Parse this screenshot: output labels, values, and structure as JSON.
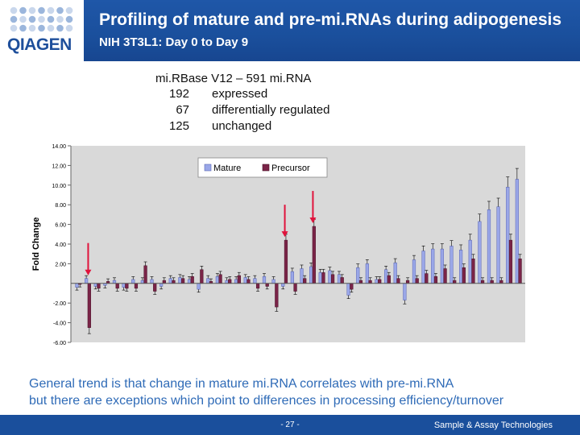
{
  "header": {
    "logo_text": "QIAGEN",
    "title": "Profiling of mature and pre-mi.RNAs during adipogenesis",
    "subtitle": "NIH 3T3L1: Day 0 to Day 9"
  },
  "stats": {
    "heading": "mi.RBase V12 – 591 mi.RNA",
    "rows": [
      {
        "value": "192",
        "label": "expressed"
      },
      {
        "value": "67",
        "label": "differentially regulated"
      },
      {
        "value": "125",
        "label": "unchanged"
      }
    ]
  },
  "caption": {
    "line1": "General trend is that change in mature mi.RNA correlates with pre-mi.RNA",
    "line2": "but there are exceptions which point to differences in processing efficiency/turnover"
  },
  "footer": {
    "page": "- 27 -",
    "tagline": "Sample & Assay Technologies"
  },
  "colors": {
    "brand_blue": "#1a4f9c",
    "mature": "#9aa7e8",
    "precursor": "#7a2448",
    "plot_bg": "#d9d9d9",
    "arrow": "#e0133c"
  },
  "chart_data": {
    "type": "bar",
    "title": "",
    "xlabel": "",
    "ylabel": "Fold Change",
    "ylim": [
      -6,
      14
    ],
    "yticks": [
      "-6.00",
      "-4.00",
      "-2.00",
      "2.00",
      "4.00",
      "6.00",
      "8.00",
      "10.00",
      "12.00",
      "14.00"
    ],
    "legend_position": "top-center",
    "grid": false,
    "series": [
      {
        "name": "Mature",
        "values": [
          -0.4,
          0.5,
          -0.3,
          -0.2,
          0.3,
          -0.4,
          0.4,
          0.3,
          0.4,
          -0.3,
          0.5,
          0.6,
          0.4,
          -0.6,
          0.5,
          0.7,
          0.3,
          0.4,
          0.6,
          0.5,
          0.7,
          0.4,
          -0.3,
          1.2,
          1.5,
          1.7,
          1.1,
          1.3,
          0.9,
          -1.2,
          1.6,
          2.0,
          0.4,
          1.4,
          2.1,
          -1.7,
          2.4,
          3.3,
          3.5,
          3.5,
          3.8,
          3.4,
          4.4,
          6.3,
          7.5,
          7.8,
          9.8,
          10.6
        ]
      },
      {
        "name": "Precursor",
        "values": [
          -0.1,
          -4.5,
          -0.5,
          0.2,
          -0.5,
          -0.5,
          -0.5,
          1.8,
          -0.8,
          0.3,
          0.3,
          0.5,
          0.7,
          1.4,
          0.2,
          0.9,
          0.4,
          0.8,
          0.4,
          -0.5,
          -0.3,
          -2.4,
          4.4,
          -0.8,
          0.5,
          5.8,
          1.1,
          0.9,
          0.6,
          -0.6,
          0.3,
          0.3,
          0.4,
          0.8,
          0.5,
          0.3,
          0.5,
          1.0,
          0.7,
          1.5,
          0.3,
          1.6,
          2.5,
          0.3,
          0.3,
          0.3,
          4.4,
          2.5
        ]
      }
    ],
    "annotations": [
      {
        "type": "arrow",
        "target_index": 1,
        "direction": "down"
      },
      {
        "type": "arrow",
        "target_index": 22,
        "direction": "down"
      },
      {
        "type": "arrow",
        "target_index": 25,
        "direction": "down"
      }
    ]
  }
}
